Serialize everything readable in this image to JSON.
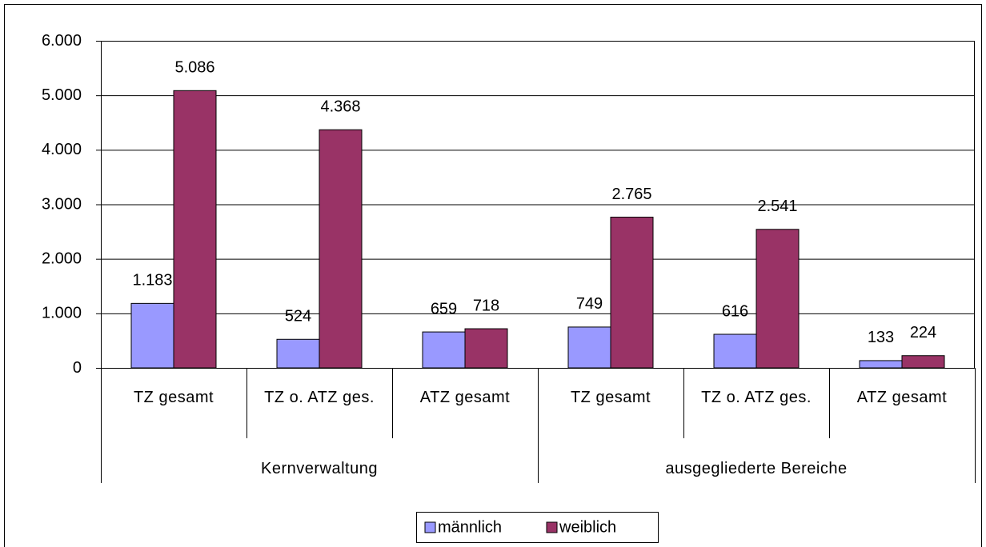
{
  "chart_data": {
    "type": "bar",
    "categories": [
      "TZ gesamt",
      "TZ o. ATZ ges.",
      "ATZ gesamt",
      "TZ gesamt",
      "TZ o. ATZ ges.",
      "ATZ gesamt"
    ],
    "group_categories": [
      "Kernverwaltung",
      "ausgegliederte Bereiche"
    ],
    "series": [
      {
        "name": "männlich",
        "color": "#9999ff",
        "values": [
          1183,
          524,
          659,
          749,
          616,
          133
        ],
        "value_labels": [
          "1.183",
          "524",
          "659",
          "749",
          "616",
          "133"
        ]
      },
      {
        "name": "weiblich",
        "color": "#993366",
        "values": [
          5086,
          4368,
          718,
          2765,
          2541,
          224
        ],
        "value_labels": [
          "5.086",
          "4.368",
          "718",
          "2.765",
          "2.541",
          "224"
        ]
      }
    ],
    "ylim": [
      0,
      6000
    ],
    "yticks": [
      0,
      {
        "value": 1000,
        "label": "1.000"
      },
      {
        "value": 2000,
        "label": "2.000"
      },
      {
        "value": 3000,
        "label": "3.000"
      },
      {
        "value": 4000,
        "label": "4.000"
      },
      {
        "value": 5000,
        "label": "5.000"
      },
      {
        "value": 6000,
        "label": "6.000"
      }
    ],
    "grid": true,
    "legend": "bottom"
  }
}
